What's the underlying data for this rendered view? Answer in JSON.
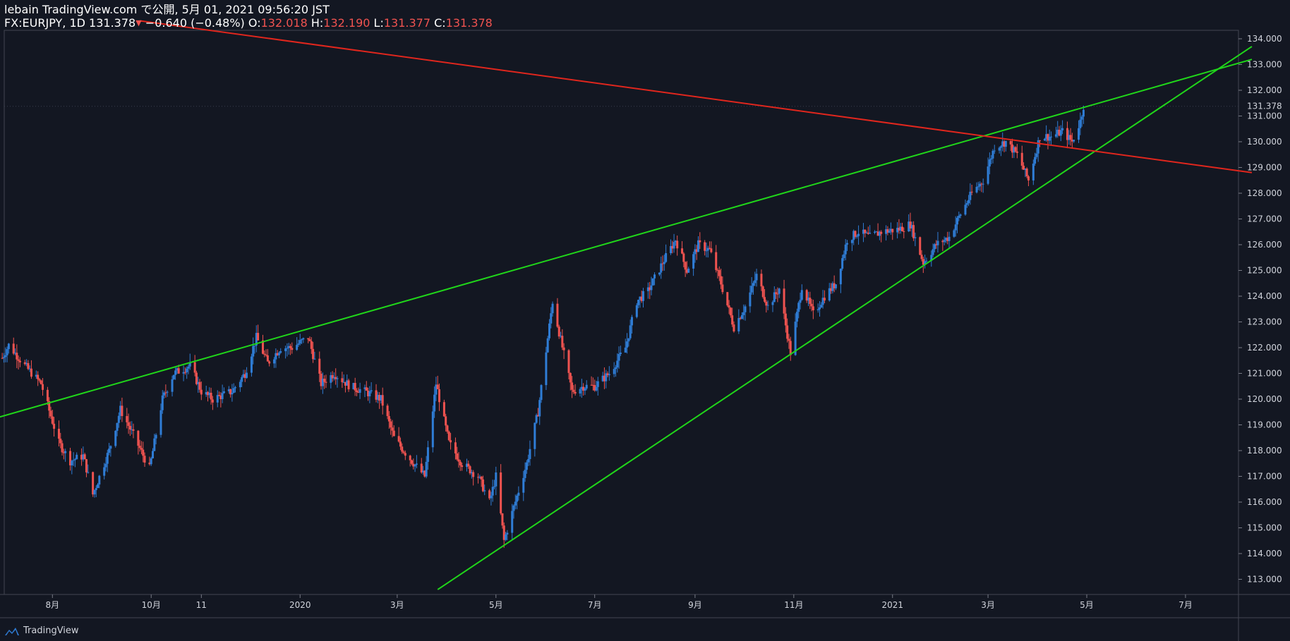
{
  "header": {
    "published": "lebain TradingView.com で公開, 5月 01, 2021 09:56:20 JST",
    "symbol": "FX:EURJPY, 1D",
    "last": "131.378",
    "arrow": "▼",
    "change": "−0.640 (−0.48%)",
    "open_label": "O:",
    "open": "132.018",
    "high_label": "H:",
    "high": "132.190",
    "low_label": "L:",
    "low": "131.377",
    "close_label": "C:",
    "close": "131.378"
  },
  "brand": {
    "name": "TradingView"
  },
  "colors": {
    "background": "#131722",
    "up": "#2f7dd6",
    "down": "#f05350",
    "trend_green": "#20d61a",
    "trend_red": "#e0261d",
    "grid": "#434651"
  },
  "chart_data": {
    "type": "candlestick",
    "symbol": "FX:EURJPY",
    "interval": "1D",
    "y_axis": {
      "ticks": [
        "113.000",
        "114.000",
        "115.000",
        "116.000",
        "117.000",
        "118.000",
        "119.000",
        "120.000",
        "121.000",
        "122.000",
        "123.000",
        "124.000",
        "125.000",
        "126.000",
        "127.000",
        "128.000",
        "129.000",
        "130.000",
        "131.000",
        "132.000",
        "133.000",
        "134.000"
      ],
      "range": [
        112.6,
        135.0
      ],
      "last_price_label": "131.378",
      "last_price": 131.378
    },
    "x_axis": {
      "labels": [
        "8月",
        "10月",
        "11",
        "2020",
        "3月",
        "5月",
        "7月",
        "9月",
        "11月",
        "2021",
        "3月",
        "5月",
        "7月"
      ]
    },
    "price_path": [
      [
        "2019-07-01",
        121.6
      ],
      [
        "2019-07-05",
        122.1
      ],
      [
        "2019-07-15",
        121.3
      ],
      [
        "2019-07-25",
        120.6
      ],
      [
        "2019-08-05",
        118.3
      ],
      [
        "2019-08-12",
        117.6
      ],
      [
        "2019-08-20",
        117.8
      ],
      [
        "2019-08-26",
        116.3
      ],
      [
        "2019-09-05",
        118.0
      ],
      [
        "2019-09-12",
        119.6
      ],
      [
        "2019-09-20",
        118.6
      ],
      [
        "2019-09-30",
        117.3
      ],
      [
        "2019-10-08",
        120.0
      ],
      [
        "2019-10-15",
        121.0
      ],
      [
        "2019-10-25",
        121.3
      ],
      [
        "2019-11-01",
        120.3
      ],
      [
        "2019-11-08",
        120.0
      ],
      [
        "2019-11-20",
        120.3
      ],
      [
        "2019-11-28",
        121.0
      ],
      [
        "2019-12-05",
        122.4
      ],
      [
        "2019-12-12",
        121.4
      ],
      [
        "2019-12-20",
        122.0
      ],
      [
        "2019-12-27",
        122.0
      ],
      [
        "2020-01-06",
        122.4
      ],
      [
        "2020-01-14",
        120.6
      ],
      [
        "2020-01-22",
        121.0
      ],
      [
        "2020-02-01",
        120.5
      ],
      [
        "2020-02-10",
        120.3
      ],
      [
        "2020-02-20",
        120.0
      ],
      [
        "2020-02-28",
        118.5
      ],
      [
        "2020-03-05",
        118.0
      ],
      [
        "2020-03-10",
        117.6
      ],
      [
        "2020-03-18",
        117.0
      ],
      [
        "2020-03-25",
        120.6
      ],
      [
        "2020-04-02",
        118.3
      ],
      [
        "2020-04-10",
        117.5
      ],
      [
        "2020-04-20",
        117.0
      ],
      [
        "2020-04-27",
        116.0
      ],
      [
        "2020-05-01",
        117.0
      ],
      [
        "2020-05-06",
        114.5
      ],
      [
        "2020-05-12",
        115.8
      ],
      [
        "2020-05-20",
        117.5
      ],
      [
        "2020-05-27",
        119.5
      ],
      [
        "2020-06-05",
        123.8
      ],
      [
        "2020-06-10",
        122.3
      ],
      [
        "2020-06-17",
        120.3
      ],
      [
        "2020-06-24",
        120.5
      ],
      [
        "2020-07-01",
        120.5
      ],
      [
        "2020-07-10",
        121.0
      ],
      [
        "2020-07-20",
        122.0
      ],
      [
        "2020-07-27",
        123.8
      ],
      [
        "2020-08-03",
        124.2
      ],
      [
        "2020-08-12",
        125.3
      ],
      [
        "2020-08-20",
        126.2
      ],
      [
        "2020-08-27",
        125.0
      ],
      [
        "2020-09-03",
        126.0
      ],
      [
        "2020-09-10",
        125.8
      ],
      [
        "2020-09-17",
        124.5
      ],
      [
        "2020-09-25",
        122.8
      ],
      [
        "2020-10-02",
        123.6
      ],
      [
        "2020-10-09",
        124.8
      ],
      [
        "2020-10-16",
        123.6
      ],
      [
        "2020-10-23",
        124.3
      ],
      [
        "2020-10-30",
        121.8
      ],
      [
        "2020-11-06",
        124.4
      ],
      [
        "2020-11-13",
        123.3
      ],
      [
        "2020-11-20",
        124.0
      ],
      [
        "2020-11-27",
        124.5
      ],
      [
        "2020-12-04",
        126.2
      ],
      [
        "2020-12-11",
        126.5
      ],
      [
        "2020-12-18",
        126.3
      ],
      [
        "2020-12-25",
        126.5
      ],
      [
        "2021-01-05",
        126.6
      ],
      [
        "2021-01-12",
        126.8
      ],
      [
        "2021-01-20",
        125.3
      ],
      [
        "2021-01-28",
        126.0
      ],
      [
        "2021-02-05",
        126.3
      ],
      [
        "2021-02-12",
        127.2
      ],
      [
        "2021-02-19",
        128.0
      ],
      [
        "2021-02-26",
        128.5
      ],
      [
        "2021-03-05",
        129.8
      ],
      [
        "2021-03-12",
        130.0
      ],
      [
        "2021-03-19",
        129.5
      ],
      [
        "2021-03-26",
        128.5
      ],
      [
        "2021-04-02",
        130.2
      ],
      [
        "2021-04-09",
        130.2
      ],
      [
        "2021-04-16",
        130.4
      ],
      [
        "2021-04-22",
        130.0
      ],
      [
        "2021-04-27",
        130.8
      ],
      [
        "2021-04-29",
        131.4
      ]
    ],
    "trendlines": [
      {
        "color": "green",
        "from": [
          "2019-06-29",
          119.3
        ],
        "to": [
          "2021-08-11",
          133.2
        ]
      },
      {
        "color": "green",
        "from": [
          "2020-03-26",
          112.6
        ],
        "to": [
          "2021-08-11",
          133.7
        ]
      },
      {
        "color": "red",
        "from": [
          "2019-09-24",
          134.7
        ],
        "to": [
          "2021-08-11",
          128.8
        ]
      }
    ],
    "grid": false,
    "legend": "none"
  }
}
